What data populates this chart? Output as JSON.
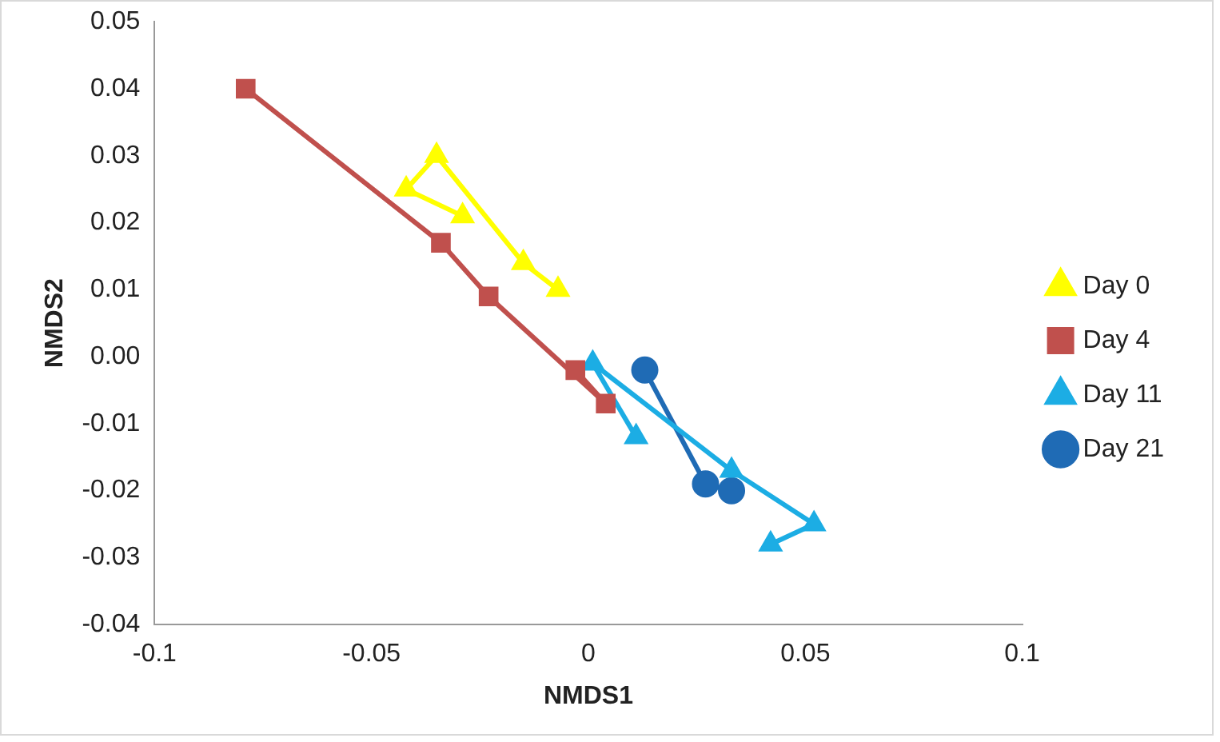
{
  "chart_data": {
    "type": "line",
    "xlabel": "NMDS1",
    "ylabel": "NMDS2",
    "xlim": [
      -0.1,
      0.1
    ],
    "xticks": [
      -0.1,
      -0.05,
      0,
      0.05,
      0.1
    ],
    "ylim": [
      -0.04,
      0.05
    ],
    "yticks": [
      {
        "value": -0.04,
        "label": "-0.04"
      },
      {
        "value": -0.03,
        "label": "-0.03"
      },
      {
        "value": -0.02,
        "label": "-0.02"
      },
      {
        "value": -0.01,
        "label": "-0.01"
      },
      {
        "value": 0,
        "label": "0.00"
      },
      {
        "value": 0.01,
        "label": "0.01"
      },
      {
        "value": 0.02,
        "label": "0.02"
      },
      {
        "value": 0.03,
        "label": "0.03"
      },
      {
        "value": 0.04,
        "label": "0.04"
      },
      {
        "value": 0.05,
        "label": "0.05"
      }
    ],
    "grid": false,
    "legend": "right",
    "line_style": "solid",
    "series": [
      {
        "name": "Day 0",
        "color": "#ffff00",
        "marker": "triangle",
        "x": [
          -0.029,
          -0.042,
          -0.035,
          -0.015,
          -0.007
        ],
        "values": [
          0.021,
          0.025,
          0.03,
          0.014,
          0.01
        ]
      },
      {
        "name": "Day 4",
        "color": "#c0504d",
        "marker": "square",
        "x": [
          -0.079,
          -0.034,
          -0.023,
          0.004,
          -0.003
        ],
        "values": [
          0.04,
          0.017,
          0.009,
          -0.007,
          -0.002
        ]
      },
      {
        "name": "Day 11",
        "color": "#1cade4",
        "marker": "triangle",
        "x": [
          0.011,
          0.001,
          0.033,
          0.052,
          0.042
        ],
        "values": [
          -0.012,
          -0.001,
          -0.017,
          -0.025,
          -0.028
        ]
      },
      {
        "name": "Day 21",
        "color": "#1f6bb5",
        "marker": "circle",
        "x": [
          0.013,
          0.027,
          0.029,
          0.031,
          0.033
        ],
        "values": [
          -0.002,
          -0.019,
          null,
          null,
          -0.02
        ]
      }
    ]
  }
}
